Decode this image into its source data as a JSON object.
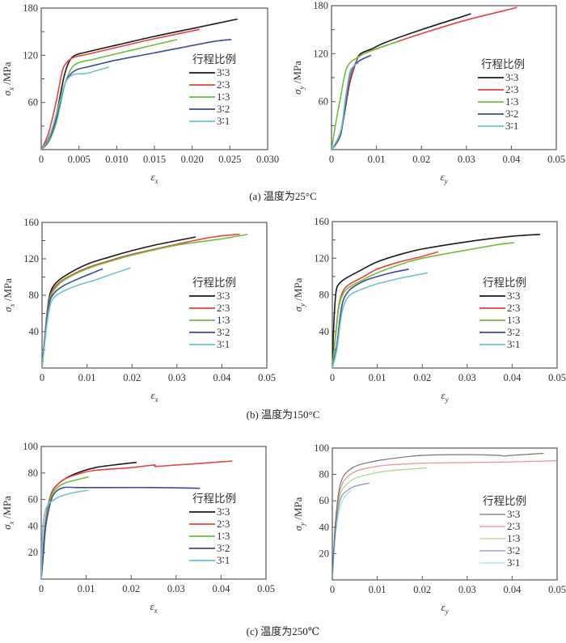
{
  "figure": {
    "captions": {
      "a": "(a) 温度为25°C",
      "b": "(b) 温度为150°C",
      "c": "(c) 温度为250℃"
    }
  },
  "legend_title": "行程比例",
  "series_colors": {
    "3:3": "#1a1a1a",
    "2:3": "#e8413c",
    "1:3": "#6cbf3c",
    "3:2": "#3a4a9c",
    "3:1": "#6cc3d8"
  },
  "chart_data": [
    {
      "id": "a-x",
      "type": "line",
      "panel": "a",
      "title": "",
      "xlabel": "ε_x",
      "ylabel": "σ_x /MPa",
      "xlim": [
        0,
        0.03
      ],
      "ylim": [
        0,
        180
      ],
      "xticks": [
        0,
        0.005,
        0.01,
        0.015,
        0.02,
        0.025,
        0.03
      ],
      "xtick_labels": [
        "0",
        "0.005",
        "0.010",
        "0.015",
        "0.020",
        "0.025",
        "0.030"
      ],
      "yticks": [
        60,
        120,
        180
      ],
      "ytick_labels": [
        "60",
        "120",
        "180"
      ],
      "yminor": [
        30,
        90,
        150
      ],
      "legend_title": "行程比例",
      "legend_position": "right",
      "series": [
        {
          "name": "3:3",
          "label": "3∶3",
          "x": [
            0,
            0.001,
            0.002,
            0.003,
            0.0037,
            0.0045,
            0.006,
            0.01,
            0.015,
            0.02,
            0.026
          ],
          "y": [
            0,
            15,
            45,
            92,
            112,
            120,
            124,
            133,
            144,
            154,
            166
          ]
        },
        {
          "name": "2:3",
          "label": "2∶3",
          "x": [
            0,
            0.001,
            0.002,
            0.0028,
            0.0035,
            0.0045,
            0.006,
            0.01,
            0.015,
            0.021
          ],
          "y": [
            0,
            22,
            62,
            100,
            112,
            118,
            121,
            130,
            141,
            153
          ]
        },
        {
          "name": "1:3",
          "label": "1∶3",
          "x": [
            0,
            0.001,
            0.002,
            0.003,
            0.0038,
            0.0048,
            0.007,
            0.01,
            0.014,
            0.018
          ],
          "y": [
            0,
            10,
            35,
            78,
            100,
            110,
            115,
            122,
            131,
            140
          ]
        },
        {
          "name": "3:2",
          "label": "3∶2",
          "x": [
            0,
            0.001,
            0.002,
            0.003,
            0.0038,
            0.0048,
            0.0065,
            0.01,
            0.015,
            0.0225,
            0.0252
          ],
          "y": [
            0,
            12,
            40,
            80,
            95,
            102,
            106,
            114,
            123,
            137,
            140
          ]
        },
        {
          "name": "3:1",
          "label": "3∶1",
          "x": [
            0,
            0.001,
            0.002,
            0.003,
            0.0037,
            0.0045,
            0.006,
            0.0075,
            0.009
          ],
          "y": [
            0,
            14,
            45,
            80,
            92,
            96,
            97,
            101,
            105
          ]
        }
      ]
    },
    {
      "id": "a-y",
      "type": "line",
      "panel": "a",
      "title": "",
      "xlabel": "ε_y",
      "ylabel": "σ_y /MPa",
      "xlim": [
        0,
        0.05
      ],
      "ylim": [
        0,
        180
      ],
      "xticks": [
        0,
        0.01,
        0.02,
        0.03,
        0.04,
        0.05
      ],
      "xtick_labels": [
        "0",
        "0.01",
        "0.02",
        "0.03",
        "0.04",
        "0.05"
      ],
      "yticks": [
        60,
        120,
        180
      ],
      "ytick_labels": [
        "60",
        "120",
        "180"
      ],
      "yminor": [
        30,
        90,
        150
      ],
      "legend_title": "行程比例",
      "legend_position": "right",
      "series": [
        {
          "name": "3:3",
          "label": "3∶3",
          "x": [
            0,
            0.002,
            0.004,
            0.0055,
            0.0065,
            0.009,
            0.012,
            0.02,
            0.03,
            0.0305
          ],
          "y": [
            0,
            20,
            82,
            110,
            120,
            126,
            134,
            150,
            168,
            169
          ]
        },
        {
          "name": "2:3",
          "label": "2∶3",
          "x": [
            0,
            0.002,
            0.004,
            0.0055,
            0.0065,
            0.01,
            0.02,
            0.03,
            0.04,
            0.0412
          ],
          "y": [
            0,
            22,
            85,
            110,
            118,
            126,
            145,
            162,
            176,
            178
          ]
        },
        {
          "name": "1:3",
          "label": "1∶3",
          "x": [
            0,
            0.001,
            0.002,
            0.003,
            0.004,
            0.006,
            0.008,
            0.012,
            0.0148
          ],
          "y": [
            0,
            35,
            65,
            95,
            108,
            116,
            122,
            130,
            135
          ]
        },
        {
          "name": "3:2",
          "label": "3∶2",
          "x": [
            0,
            0.002,
            0.003,
            0.004,
            0.005,
            0.0065,
            0.0088
          ],
          "y": [
            0,
            18,
            55,
            92,
            105,
            112,
            118
          ]
        },
        {
          "name": "3:1",
          "label": "3∶1",
          "x": [
            0,
            0.002,
            0.003,
            0.004,
            0.005,
            0.006
          ],
          "y": [
            0,
            22,
            60,
            95,
            105,
            108
          ]
        }
      ]
    },
    {
      "id": "b-x",
      "type": "line",
      "panel": "b",
      "title": "",
      "xlabel": "ε_x",
      "ylabel": "σ_x /MPa",
      "xlim": [
        0,
        0.05
      ],
      "ylim": [
        0,
        160
      ],
      "xticks": [
        0,
        0.01,
        0.02,
        0.03,
        0.04,
        0.05
      ],
      "xtick_labels": [
        "0",
        "0.01",
        "0.02",
        "0.03",
        "0.04",
        "0.05"
      ],
      "yticks": [
        40,
        80,
        120,
        160
      ],
      "ytick_labels": [
        "40",
        "80",
        "120",
        "160"
      ],
      "yminor": [
        20,
        60,
        100,
        140
      ],
      "legend_title": "行程比例",
      "legend_position": "right",
      "series": [
        {
          "name": "3:3",
          "label": "3∶3",
          "x": [
            0,
            0.001,
            0.0015,
            0.002,
            0.003,
            0.005,
            0.01,
            0.015,
            0.02,
            0.025,
            0.03,
            0.0342
          ],
          "y": [
            0,
            55,
            75,
            85,
            93,
            101,
            114,
            122,
            129,
            135,
            140,
            144
          ]
        },
        {
          "name": "2:3",
          "label": "2∶3",
          "x": [
            0,
            0.001,
            0.0015,
            0.002,
            0.003,
            0.005,
            0.01,
            0.015,
            0.02,
            0.03,
            0.038,
            0.044
          ],
          "y": [
            0,
            55,
            72,
            82,
            90,
            98,
            110,
            118,
            125,
            136,
            144,
            147
          ]
        },
        {
          "name": "1:3",
          "label": "1∶3",
          "x": [
            0,
            0.001,
            0.0015,
            0.002,
            0.003,
            0.005,
            0.01,
            0.015,
            0.02,
            0.03,
            0.04,
            0.0458
          ],
          "y": [
            0,
            52,
            70,
            80,
            88,
            97,
            109,
            117,
            124,
            135,
            142,
            147
          ]
        },
        {
          "name": "3:2",
          "label": "3∶2",
          "x": [
            0,
            0.001,
            0.0015,
            0.002,
            0.003,
            0.005,
            0.008,
            0.011,
            0.0135
          ],
          "y": [
            0,
            50,
            68,
            77,
            84,
            91,
            98,
            104,
            109
          ]
        },
        {
          "name": "3:1",
          "label": "3∶1",
          "x": [
            0,
            0.001,
            0.0015,
            0.002,
            0.003,
            0.005,
            0.008,
            0.012,
            0.016,
            0.0197
          ],
          "y": [
            0,
            45,
            62,
            72,
            79,
            85,
            91,
            97,
            104,
            110
          ]
        }
      ]
    },
    {
      "id": "b-y",
      "type": "line",
      "panel": "b",
      "title": "",
      "xlabel": "ε_y",
      "ylabel": "σ_y /MPa",
      "xlim": [
        0,
        0.05
      ],
      "ylim": [
        0,
        160
      ],
      "xticks": [
        0,
        0.01,
        0.02,
        0.03,
        0.04,
        0.05
      ],
      "xtick_labels": [
        "0",
        "0.01",
        "0.02",
        "0.03",
        "0.04",
        "0.05"
      ],
      "yticks": [
        40,
        80,
        120,
        160
      ],
      "ytick_labels": [
        "40",
        "80",
        "120",
        "160"
      ],
      "yminor": [
        20,
        60,
        100,
        140
      ],
      "legend_title": "行程比例",
      "legend_position": "right",
      "series": [
        {
          "name": "3:3",
          "label": "3∶3",
          "x": [
            0,
            0.0003,
            0.0008,
            0.0015,
            0.003,
            0.006,
            0.01,
            0.015,
            0.02,
            0.03,
            0.04,
            0.0462
          ],
          "y": [
            0,
            45,
            82,
            92,
            98,
            106,
            116,
            124,
            130,
            138,
            144,
            146
          ]
        },
        {
          "name": "2:3",
          "label": "2∶3",
          "x": [
            0,
            0.0008,
            0.0015,
            0.0025,
            0.004,
            0.007,
            0.01,
            0.015,
            0.02,
            0.0235
          ],
          "y": [
            0,
            40,
            70,
            85,
            92,
            100,
            108,
            116,
            122,
            127
          ]
        },
        {
          "name": "1:3",
          "label": "1∶3",
          "x": [
            0,
            0.0008,
            0.0015,
            0.0025,
            0.004,
            0.007,
            0.01,
            0.015,
            0.02,
            0.03,
            0.037,
            0.0405
          ],
          "y": [
            0,
            38,
            68,
            82,
            89,
            97,
            104,
            113,
            120,
            129,
            135,
            137
          ]
        },
        {
          "name": "3:2",
          "label": "3∶2",
          "x": [
            0,
            0.001,
            0.0018,
            0.0025,
            0.004,
            0.007,
            0.01,
            0.013,
            0.017
          ],
          "y": [
            0,
            25,
            58,
            75,
            86,
            95,
            100,
            104,
            108
          ]
        },
        {
          "name": "3:1",
          "label": "3∶1",
          "x": [
            0,
            0.001,
            0.0018,
            0.0025,
            0.004,
            0.007,
            0.01,
            0.015,
            0.0212
          ],
          "y": [
            0,
            20,
            50,
            68,
            80,
            87,
            92,
            98,
            104
          ]
        }
      ]
    },
    {
      "id": "c-x",
      "type": "line",
      "panel": "c",
      "title": "",
      "xlabel": "ε_x",
      "ylabel": "σ_x /MPa",
      "xlim": [
        0,
        0.05
      ],
      "ylim": [
        0,
        100
      ],
      "xticks": [
        0,
        0.01,
        0.02,
        0.03,
        0.04,
        0.05
      ],
      "xtick_labels": [
        "0",
        "0.01",
        "0.02",
        "0.03",
        "0.04",
        "0.05"
      ],
      "yticks": [
        20,
        40,
        60,
        80,
        100
      ],
      "ytick_labels": [
        "20",
        "40",
        "60",
        "80",
        "100"
      ],
      "yminor": [],
      "legend_title": "行程比例",
      "legend_position": "right",
      "series": [
        {
          "name": "3:3",
          "label": "3∶3",
          "x": [
            0,
            0.0005,
            0.001,
            0.002,
            0.003,
            0.005,
            0.008,
            0.012,
            0.016,
            0.0212
          ],
          "y": [
            0,
            25,
            45,
            62,
            69,
            75,
            80,
            84,
            86,
            88
          ]
        },
        {
          "name": "2:3",
          "label": "2∶3",
          "x": [
            0,
            0.0005,
            0.001,
            0.002,
            0.003,
            0.005,
            0.008,
            0.012,
            0.02,
            0.025,
            0.0255,
            0.03,
            0.0425
          ],
          "y": [
            0,
            25,
            45,
            62,
            69,
            75,
            79,
            82,
            84,
            86,
            85,
            86,
            89
          ]
        },
        {
          "name": "1:3",
          "label": "1∶3",
          "x": [
            0,
            0.0005,
            0.001,
            0.002,
            0.003,
            0.005,
            0.008,
            0.0105
          ],
          "y": [
            0,
            22,
            42,
            60,
            67,
            72,
            75,
            77
          ]
        },
        {
          "name": "3:2",
          "label": "3∶2",
          "x": [
            0,
            0.0005,
            0.001,
            0.002,
            0.003,
            0.005,
            0.008,
            0.015,
            0.025,
            0.0353
          ],
          "y": [
            0,
            20,
            40,
            57,
            65,
            69,
            69,
            69,
            69,
            68.5
          ]
        },
        {
          "name": "3:1",
          "label": "3∶1",
          "x": [
            0,
            0.0003,
            0.0008,
            0.0015,
            0.0025,
            0.004,
            0.007,
            0.0105
          ],
          "y": [
            0,
            35,
            50,
            56,
            59,
            62,
            65,
            67
          ]
        }
      ]
    },
    {
      "id": "c-y",
      "type": "line",
      "panel": "c",
      "title": "",
      "xlabel": "ε_y",
      "ylabel": "σ_y /MPa",
      "xlim": [
        0,
        0.05
      ],
      "ylim": [
        0,
        100
      ],
      "xticks": [
        0,
        0.01,
        0.02,
        0.03,
        0.04,
        0.05
      ],
      "xtick_labels": [
        "0",
        "0.01",
        "0.02",
        "0.03",
        "0.04",
        "0.05"
      ],
      "yticks": [
        20,
        40,
        60,
        80,
        100
      ],
      "ytick_labels": [
        "20",
        "40",
        "60",
        "80",
        "100"
      ],
      "yminor": [],
      "legend_title": "行程比例",
      "legend_position": "right",
      "series": [
        {
          "name": "3:3",
          "label": "3∶3",
          "x": [
            0,
            0.0005,
            0.001,
            0.0015,
            0.002,
            0.003,
            0.005,
            0.008,
            0.012,
            0.02,
            0.03,
            0.037,
            0.038,
            0.04,
            0.047
          ],
          "y": [
            0,
            35,
            55,
            68,
            75,
            81,
            86,
            89,
            91.5,
            94.5,
            95,
            94.5,
            94,
            94.5,
            96
          ]
        },
        {
          "name": "2:3",
          "label": "2∶3",
          "x": [
            0,
            0.0005,
            0.001,
            0.0015,
            0.002,
            0.003,
            0.005,
            0.008,
            0.012,
            0.02,
            0.03,
            0.04,
            0.05
          ],
          "y": [
            0,
            33,
            52,
            64,
            71,
            77,
            82,
            85,
            87,
            88.5,
            89,
            89.5,
            90.5
          ]
        },
        {
          "name": "1:3",
          "label": "1∶3",
          "x": [
            0,
            0.0005,
            0.001,
            0.0015,
            0.002,
            0.003,
            0.005,
            0.008,
            0.012,
            0.017,
            0.021
          ],
          "y": [
            0,
            32,
            50,
            61,
            67,
            72,
            77,
            80,
            82.5,
            84,
            85
          ]
        },
        {
          "name": "3:2",
          "label": "3∶2",
          "x": [
            0,
            0.0005,
            0.001,
            0.0015,
            0.002,
            0.003,
            0.005,
            0.0083
          ],
          "y": [
            0,
            30,
            47,
            57,
            63,
            67,
            71,
            73.5
          ]
        },
        {
          "name": "3:1",
          "label": "3∶1",
          "x": [
            0,
            0.0005,
            0.001,
            0.0015,
            0.002,
            0.003,
            0.0043
          ],
          "y": [
            0,
            25,
            42,
            52,
            58,
            64,
            68
          ]
        }
      ]
    }
  ]
}
